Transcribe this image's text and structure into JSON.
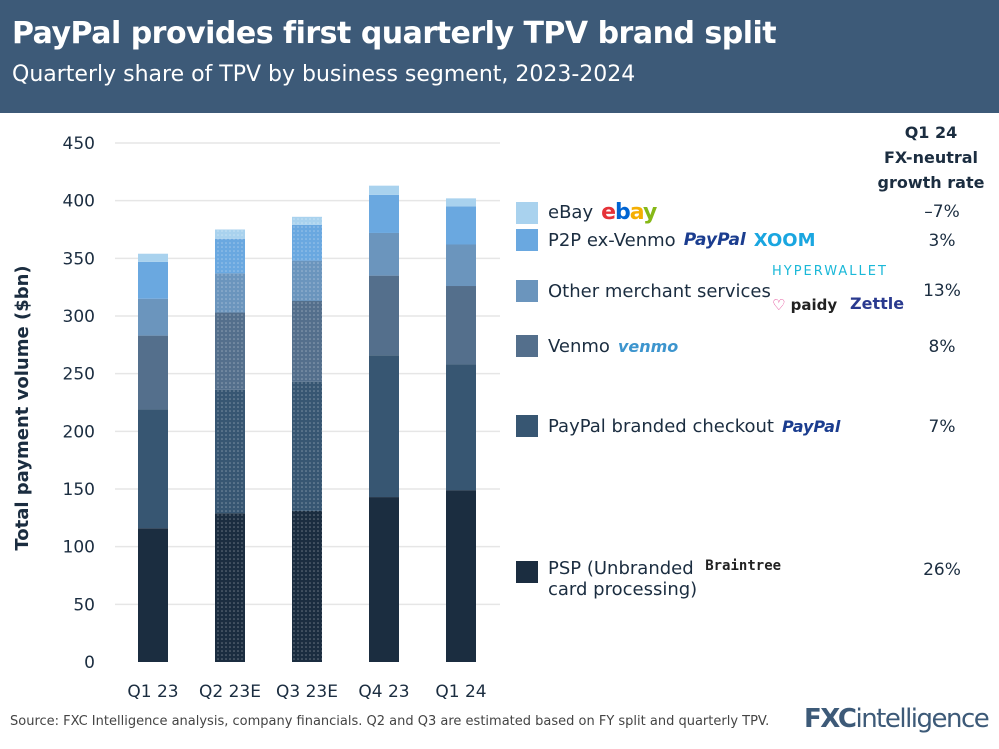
{
  "header": {
    "title": "PayPal provides first quarterly TPV brand split",
    "subtitle": "Quarterly share of TPV by business segment, 2023-2024"
  },
  "chart_data": {
    "type": "bar",
    "stacked": true,
    "categories": [
      "Q1 23",
      "Q2 23E",
      "Q3 23E",
      "Q4 23",
      "Q1 24"
    ],
    "estimated": [
      false,
      true,
      true,
      false,
      false
    ],
    "ylabel": "Total payment volume ($bn)",
    "ylim": [
      0,
      450
    ],
    "yticks": [
      0,
      50,
      100,
      150,
      200,
      250,
      300,
      350,
      400,
      450
    ],
    "grid": true,
    "series": [
      {
        "name": "PSP (Unbranded card processing)",
        "color": "#1b2d40",
        "values": [
          116,
          129,
          131,
          143,
          149
        ]
      },
      {
        "name": "PayPal branded checkout",
        "color": "#375672",
        "values": [
          103,
          107,
          112,
          123,
          109
        ]
      },
      {
        "name": "Venmo",
        "color": "#546f8c",
        "values": [
          64,
          67,
          70,
          69,
          68
        ]
      },
      {
        "name": "Other merchant services",
        "color": "#6b95bd",
        "values": [
          32,
          34,
          35,
          37,
          36
        ]
      },
      {
        "name": "P2P ex-Venmo",
        "color": "#6aa8e0",
        "values": [
          32,
          30,
          31,
          33,
          33
        ]
      },
      {
        "name": "eBay",
        "color": "#a9d2ee",
        "values": [
          7,
          8,
          7,
          8,
          7
        ]
      }
    ]
  },
  "legend": {
    "header": [
      "Q1 24",
      "FX-neutral",
      "growth rate"
    ],
    "items": [
      {
        "label": "eBay",
        "logos": [
          "ebay"
        ],
        "rate": "–7%"
      },
      {
        "label": "P2P ex-Venmo",
        "logos": [
          "PayPal",
          "XOOM"
        ],
        "rate": "3%"
      },
      {
        "label": "Other merchant services",
        "logos": [
          "HYPERWALLET",
          "paidy",
          "Zettle"
        ],
        "rate": "13%"
      },
      {
        "label": "Venmo",
        "logos": [
          "venmo"
        ],
        "rate": "8%"
      },
      {
        "label": "PayPal branded checkout",
        "logos": [
          "PayPal"
        ],
        "rate": "7%"
      },
      {
        "label": "PSP (Unbranded",
        "label2": "card processing)",
        "logos": [
          "Braintree"
        ],
        "rate": "26%"
      }
    ]
  },
  "footer": {
    "source": "Source: FXC Intelligence analysis, company financials. Q2 and Q3 are estimated based on FY split and quarterly TPV.",
    "brand_a": "FXC",
    "brand_b": "intelligence"
  }
}
